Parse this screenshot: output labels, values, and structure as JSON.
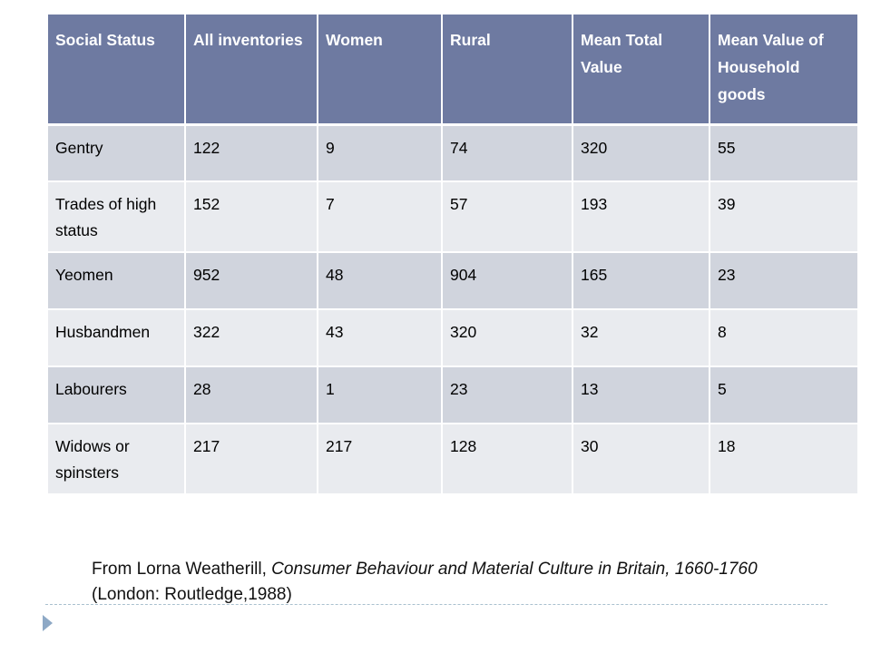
{
  "table": {
    "headers": [
      "Social Status",
      "All inventories",
      "Women",
      "Rural",
      "Mean Total Value",
      "Mean Value of Household goods"
    ],
    "rows": [
      [
        "Gentry",
        "122",
        "9",
        "74",
        "320",
        "55"
      ],
      [
        "Trades of high status",
        "152",
        "7",
        "57",
        "193",
        "39"
      ],
      [
        "Yeomen",
        "952",
        "48",
        "904",
        "165",
        "23"
      ],
      [
        "Husbandmen",
        "322",
        "43",
        "320",
        "32",
        "8"
      ],
      [
        "Labourers",
        "28",
        "1",
        "23",
        "13",
        "5"
      ],
      [
        "Widows or spinsters",
        "217",
        "217",
        "128",
        "30",
        "18"
      ]
    ]
  },
  "citation": {
    "prefix": "From Lorna Weatherill, ",
    "book_title": "Consumer Behaviour and Material Culture in Britain, 1660-1760",
    "suffix": " (London: Routledge,1988)"
  },
  "colors": {
    "header_bg": "#6e7aa1",
    "row_dark": "#d0d4dd",
    "row_light": "#e9ebef",
    "bullet": "#8ea9c6"
  },
  "icons": {
    "bullet": "triangle-bullet-icon"
  }
}
